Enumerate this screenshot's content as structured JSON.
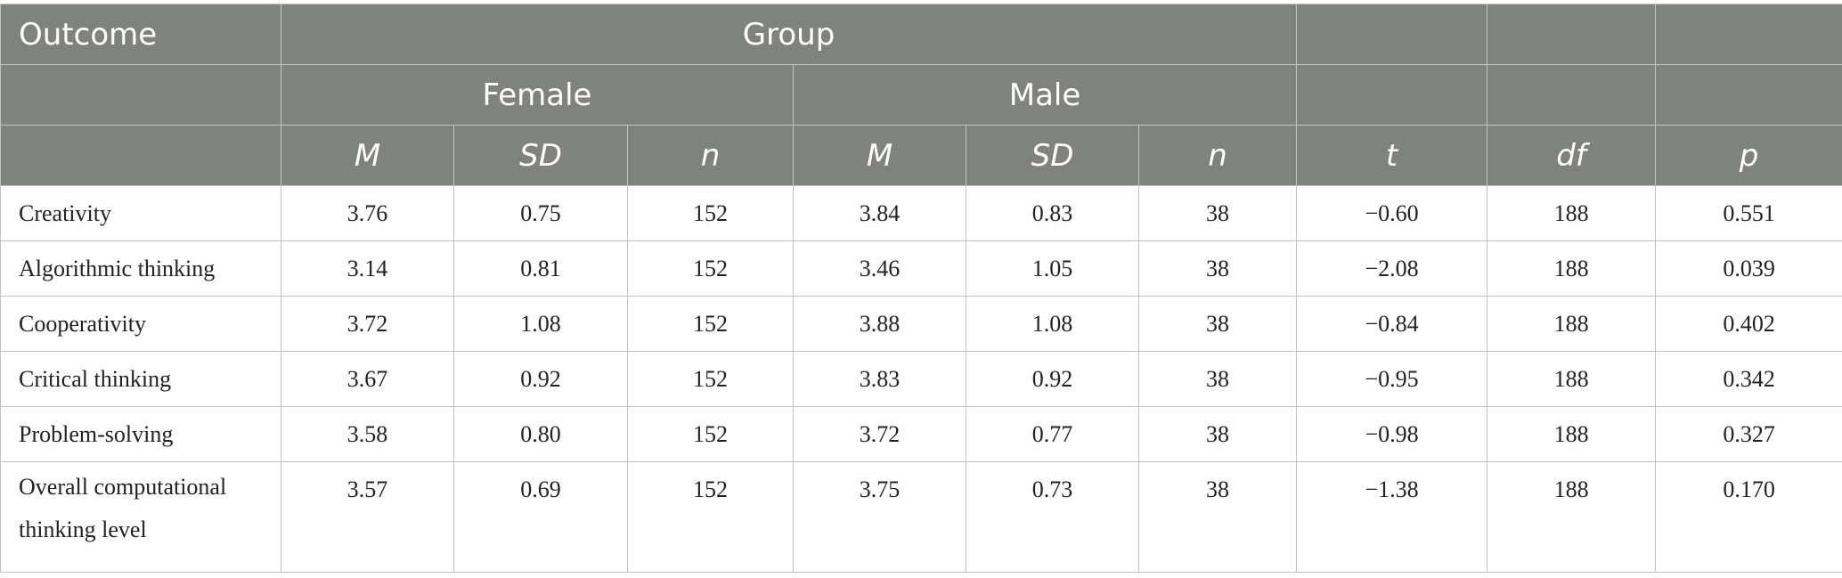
{
  "header": {
    "outcome": "Outcome",
    "group": "Group",
    "female": "Female",
    "male": "Male",
    "stats": [
      "M",
      "SD",
      "n",
      "M",
      "SD",
      "n",
      "t",
      "df",
      "p"
    ]
  },
  "rows": [
    {
      "outcome": "Creativity",
      "values": [
        "3.76",
        "0.75",
        "152",
        "3.84",
        "0.83",
        "38",
        "−0.60",
        "188",
        "0.551"
      ]
    },
    {
      "outcome": "Algorithmic thinking",
      "values": [
        "3.14",
        "0.81",
        "152",
        "3.46",
        "1.05",
        "38",
        "−2.08",
        "188",
        "0.039"
      ]
    },
    {
      "outcome": "Cooperativity",
      "values": [
        "3.72",
        "1.08",
        "152",
        "3.88",
        "1.08",
        "38",
        "−0.84",
        "188",
        "0.402"
      ]
    },
    {
      "outcome": "Critical thinking",
      "values": [
        "3.67",
        "0.92",
        "152",
        "3.83",
        "0.92",
        "38",
        "−0.95",
        "188",
        "0.342"
      ]
    },
    {
      "outcome": "Problem-solving",
      "values": [
        "3.58",
        "0.80",
        "152",
        "3.72",
        "0.77",
        "38",
        "−0.98",
        "188",
        "0.327"
      ]
    },
    {
      "outcome": "Overall computational thinking level",
      "values": [
        "3.57",
        "0.69",
        "152",
        "3.75",
        "0.73",
        "38",
        "−1.38",
        "188",
        "0.170"
      ]
    }
  ]
}
